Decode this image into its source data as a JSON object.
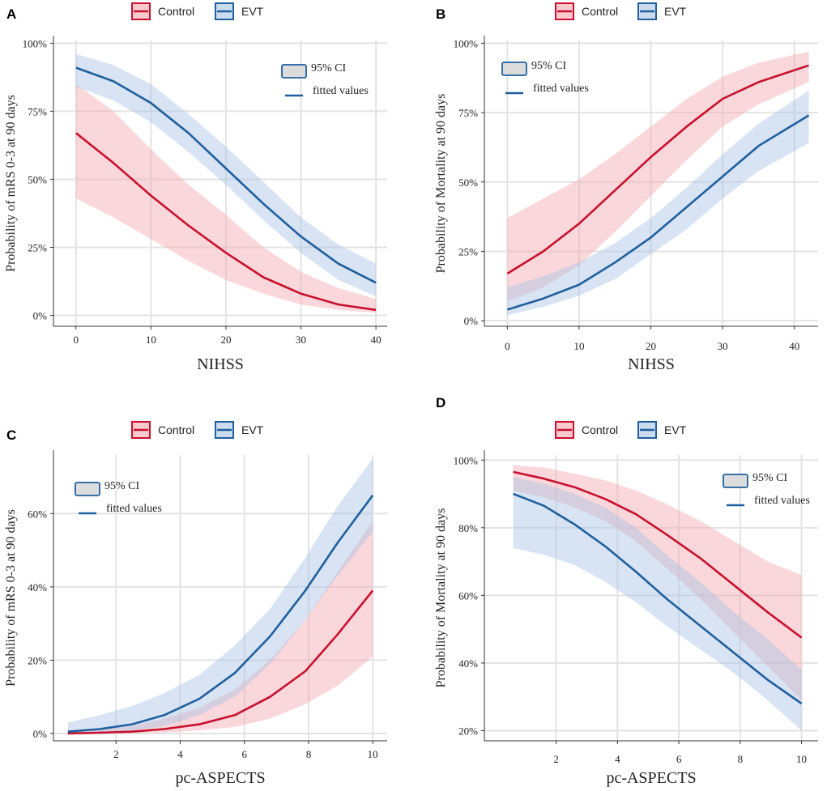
{
  "colors": {
    "control_line": "#c8102e",
    "control_band": "#f4a6ad",
    "evt_line": "#1f5f9e",
    "evt_band": "#a9c4e4",
    "ci_legend_fill": "#dcdcdc"
  },
  "legend": {
    "control_label": "Control",
    "evt_label": "EVT"
  },
  "inset": {
    "ci_label": "95% CI",
    "fit_label": "fitted values"
  },
  "chart_data": [
    {
      "panel": "A",
      "type": "line",
      "xlabel": "NIHSS",
      "ylabel": "Probability of mRS 0-3 at 90 days",
      "xlim": [
        -3,
        41.5
      ],
      "ylim": [
        -0.04,
        1.01
      ],
      "xticks": [
        0,
        10,
        20,
        30,
        40
      ],
      "yticks": [
        0,
        0.25,
        0.5,
        0.75,
        1.0
      ],
      "ytick_labels": [
        "0%",
        "25%",
        "50%",
        "75%",
        "100%"
      ],
      "xtick_labels": [
        "0",
        "10",
        "20",
        "30",
        "40"
      ],
      "legend_position": "top-right",
      "series": [
        {
          "name": "Control",
          "x": [
            0,
            5,
            10,
            15,
            20,
            25,
            30,
            35,
            40
          ],
          "fit": [
            0.67,
            0.56,
            0.44,
            0.33,
            0.23,
            0.14,
            0.08,
            0.04,
            0.02
          ],
          "lower": [
            0.43,
            0.36,
            0.28,
            0.2,
            0.13,
            0.08,
            0.04,
            0.02,
            0.01
          ],
          "upper": [
            0.85,
            0.75,
            0.61,
            0.48,
            0.37,
            0.25,
            0.16,
            0.1,
            0.06
          ]
        },
        {
          "name": "EVT",
          "x": [
            0,
            5,
            10,
            15,
            20,
            25,
            30,
            35,
            40
          ],
          "fit": [
            0.91,
            0.86,
            0.78,
            0.67,
            0.54,
            0.41,
            0.29,
            0.19,
            0.12
          ],
          "lower": [
            0.84,
            0.79,
            0.71,
            0.6,
            0.48,
            0.35,
            0.23,
            0.13,
            0.07
          ],
          "upper": [
            0.96,
            0.92,
            0.85,
            0.74,
            0.62,
            0.49,
            0.36,
            0.26,
            0.19
          ]
        }
      ]
    },
    {
      "panel": "B",
      "type": "line",
      "xlabel": "NIHSS",
      "ylabel": "Probability of Mortality at 90 days",
      "xlim": [
        -3.2,
        43.3
      ],
      "ylim": [
        -0.02,
        1.01
      ],
      "xticks": [
        0,
        10,
        20,
        30,
        40
      ],
      "yticks": [
        0,
        0.25,
        0.5,
        0.75,
        1.0
      ],
      "ytick_labels": [
        "0%",
        "25%",
        "50%",
        "75%",
        "100%"
      ],
      "xtick_labels": [
        "0",
        "10",
        "20",
        "30",
        "40"
      ],
      "legend_position": "top-left",
      "series": [
        {
          "name": "Control",
          "x": [
            0,
            5,
            10,
            15,
            20,
            25,
            30,
            35,
            42
          ],
          "fit": [
            0.17,
            0.25,
            0.35,
            0.47,
            0.59,
            0.7,
            0.8,
            0.86,
            0.92
          ],
          "lower": [
            0.07,
            0.12,
            0.2,
            0.32,
            0.45,
            0.58,
            0.7,
            0.78,
            0.86
          ],
          "upper": [
            0.37,
            0.44,
            0.51,
            0.6,
            0.7,
            0.8,
            0.88,
            0.93,
            0.97
          ]
        },
        {
          "name": "EVT",
          "x": [
            0,
            5,
            10,
            15,
            20,
            25,
            30,
            35,
            42
          ],
          "fit": [
            0.04,
            0.08,
            0.13,
            0.21,
            0.3,
            0.41,
            0.52,
            0.63,
            0.74
          ],
          "lower": [
            0.02,
            0.05,
            0.09,
            0.15,
            0.24,
            0.33,
            0.44,
            0.54,
            0.64
          ],
          "upper": [
            0.12,
            0.16,
            0.21,
            0.28,
            0.37,
            0.48,
            0.6,
            0.71,
            0.83
          ]
        }
      ]
    },
    {
      "panel": "C",
      "type": "line",
      "xlabel": "pc-ASPECTS",
      "ylabel": "Probability of mRS 0-3 at 90 days",
      "xlim": [
        0.05,
        10.45
      ],
      "ylim": [
        -0.02,
        0.76
      ],
      "xticks": [
        2,
        4,
        6,
        8,
        10
      ],
      "yticks": [
        0,
        0.2,
        0.4,
        0.6
      ],
      "ytick_labels": [
        "0%",
        "20%",
        "40%",
        "60%"
      ],
      "xtick_labels": [
        "2",
        "4",
        "6",
        "8",
        "10"
      ],
      "legend_position": "top-left",
      "series": [
        {
          "name": "Control",
          "x": [
            0.5,
            1.5,
            2.5,
            3.5,
            4.6,
            5.7,
            6.8,
            7.9,
            8.9,
            10
          ],
          "fit": [
            0.0,
            0.002,
            0.005,
            0.012,
            0.025,
            0.05,
            0.1,
            0.17,
            0.27,
            0.39
          ],
          "lower": [
            0.0,
            0.0,
            0.001,
            0.003,
            0.008,
            0.018,
            0.04,
            0.08,
            0.13,
            0.21
          ],
          "upper": [
            0.005,
            0.01,
            0.02,
            0.04,
            0.07,
            0.12,
            0.2,
            0.31,
            0.44,
            0.58
          ]
        },
        {
          "name": "EVT",
          "x": [
            0.5,
            1.5,
            2.5,
            3.5,
            4.6,
            5.7,
            6.8,
            7.9,
            8.9,
            10
          ],
          "fit": [
            0.005,
            0.012,
            0.025,
            0.05,
            0.095,
            0.165,
            0.265,
            0.39,
            0.52,
            0.65
          ],
          "lower": [
            0.0,
            0.002,
            0.008,
            0.02,
            0.05,
            0.1,
            0.19,
            0.31,
            0.43,
            0.55
          ],
          "upper": [
            0.03,
            0.05,
            0.075,
            0.11,
            0.16,
            0.24,
            0.34,
            0.48,
            0.62,
            0.75
          ]
        }
      ]
    },
    {
      "panel": "D",
      "type": "line",
      "xlabel": "pc-ASPECTS",
      "ylabel": "Probability of Mortality at 90 days",
      "xlim": [
        -0.34,
        10.54
      ],
      "ylim": [
        0.17,
        1.015
      ],
      "xticks": [
        2,
        4,
        6,
        8,
        10
      ],
      "yticks": [
        0.2,
        0.4,
        0.6,
        0.8,
        1.0
      ],
      "ytick_labels": [
        "20%",
        "40%",
        "60%",
        "80%",
        "100%"
      ],
      "xtick_labels": [
        "2",
        "4",
        "6",
        "8",
        "10"
      ],
      "legend_position": "top-right",
      "series": [
        {
          "name": "Control",
          "x": [
            0.6,
            1.6,
            2.6,
            3.6,
            4.6,
            5.6,
            6.7,
            7.8,
            8.9,
            10
          ],
          "fit": [
            0.965,
            0.945,
            0.92,
            0.885,
            0.84,
            0.78,
            0.71,
            0.63,
            0.55,
            0.475
          ],
          "lower": [
            0.91,
            0.89,
            0.86,
            0.82,
            0.76,
            0.68,
            0.59,
            0.49,
            0.39,
            0.29
          ],
          "upper": [
            0.985,
            0.978,
            0.96,
            0.94,
            0.91,
            0.87,
            0.82,
            0.76,
            0.7,
            0.66
          ]
        },
        {
          "name": "EVT",
          "x": [
            0.6,
            1.6,
            2.6,
            3.6,
            4.6,
            5.6,
            6.7,
            7.8,
            8.9,
            10
          ],
          "fit": [
            0.9,
            0.865,
            0.81,
            0.745,
            0.67,
            0.59,
            0.51,
            0.43,
            0.35,
            0.28
          ],
          "lower": [
            0.74,
            0.72,
            0.69,
            0.64,
            0.58,
            0.51,
            0.44,
            0.37,
            0.29,
            0.2
          ],
          "upper": [
            0.95,
            0.93,
            0.9,
            0.86,
            0.8,
            0.72,
            0.64,
            0.55,
            0.47,
            0.38
          ]
        }
      ]
    }
  ]
}
